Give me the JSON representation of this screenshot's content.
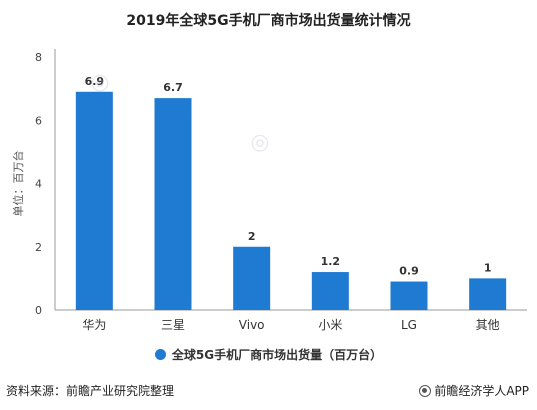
{
  "title": "2019年全球5G手机厂商市场出货量统计情况",
  "legend_label": "全球5G手机厂商市场出货量（百万台）",
  "source": "资料来源：前瞻产业研究院整理",
  "brand": "前瞻经济学人APP",
  "colors": {
    "bar": "#1f7bd1",
    "label": "#333333"
  },
  "chart_data": {
    "type": "bar",
    "categories": [
      "华为",
      "三星",
      "Vivo",
      "小米",
      "LG",
      "其他"
    ],
    "values": [
      6.9,
      6.7,
      2,
      1.2,
      0.9,
      1
    ],
    "value_labels": [
      "6.9",
      "6.7",
      "2",
      "1.2",
      "0.9",
      "1"
    ],
    "ylabel": "单位：百万台",
    "ylim": [
      0,
      8
    ],
    "yticks": [
      0,
      2,
      4,
      6,
      8
    ],
    "grid": false,
    "legend_position": "bottom",
    "series": [
      {
        "name": "全球5G手机厂商市场出货量（百万台）",
        "values": [
          6.9,
          6.7,
          2,
          1.2,
          0.9,
          1
        ]
      }
    ]
  }
}
